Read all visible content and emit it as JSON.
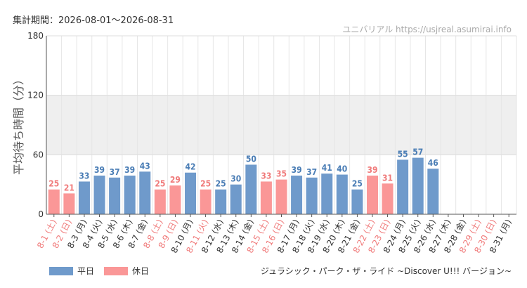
{
  "header": {
    "period": "集計期間：2026-08-01〜2026-08-31",
    "site": "ユニバリアル https://usjreal.asumirai.info"
  },
  "footer": {
    "attraction": "ジュラシック・パーク・ザ・ライド ~Discover U!!! バージョン~"
  },
  "colors": {
    "weekday": "#6f9acb",
    "holiday": "#fa9797",
    "weekday_label": "#4a7db5",
    "holiday_label": "#f07b7b",
    "band": "#efefef"
  },
  "chart_data": {
    "type": "bar",
    "title": "",
    "ylabel": "平均待ち時間（分）",
    "xlabel": "",
    "ylim": [
      0,
      180
    ],
    "yticks": [
      0,
      60,
      120,
      180
    ],
    "grid": true,
    "shaded_band": [
      60,
      120
    ],
    "legend_position": "bottom-left",
    "series": [
      {
        "name": "平日",
        "color": "#6f9acb"
      },
      {
        "name": "休日",
        "color": "#fa9797"
      }
    ],
    "categories": [
      "8-1 (土)",
      "8-2 (日)",
      "8-3 (月)",
      "8-4 (火)",
      "8-5 (水)",
      "8-6 (木)",
      "8-7 (金)",
      "8-8 (土)",
      "8-9 (日)",
      "8-10 (月)",
      "8-11 (火)",
      "8-12 (水)",
      "8-13 (木)",
      "8-14 (金)",
      "8-15 (土)",
      "8-16 (日)",
      "8-17 (月)",
      "8-18 (火)",
      "8-19 (水)",
      "8-20 (木)",
      "8-21 (金)",
      "8-22 (土)",
      "8-23 (日)",
      "8-24 (月)",
      "8-25 (火)",
      "8-26 (水)",
      "8-27 (木)",
      "8-28 (金)",
      "8-29 (土)",
      "8-30 (日)",
      "8-31 (月)"
    ],
    "values": [
      25,
      21,
      33,
      39,
      37,
      39,
      43,
      25,
      29,
      42,
      25,
      25,
      30,
      50,
      33,
      35,
      39,
      37,
      41,
      40,
      25,
      39,
      31,
      55,
      57,
      46,
      null,
      null,
      null,
      null,
      null
    ],
    "day_type": [
      "休日",
      "休日",
      "平日",
      "平日",
      "平日",
      "平日",
      "平日",
      "休日",
      "休日",
      "平日",
      "休日",
      "平日",
      "平日",
      "平日",
      "休日",
      "休日",
      "平日",
      "平日",
      "平日",
      "平日",
      "平日",
      "休日",
      "休日",
      "平日",
      "平日",
      "平日",
      "平日",
      "平日",
      "休日",
      "休日",
      "平日"
    ]
  }
}
